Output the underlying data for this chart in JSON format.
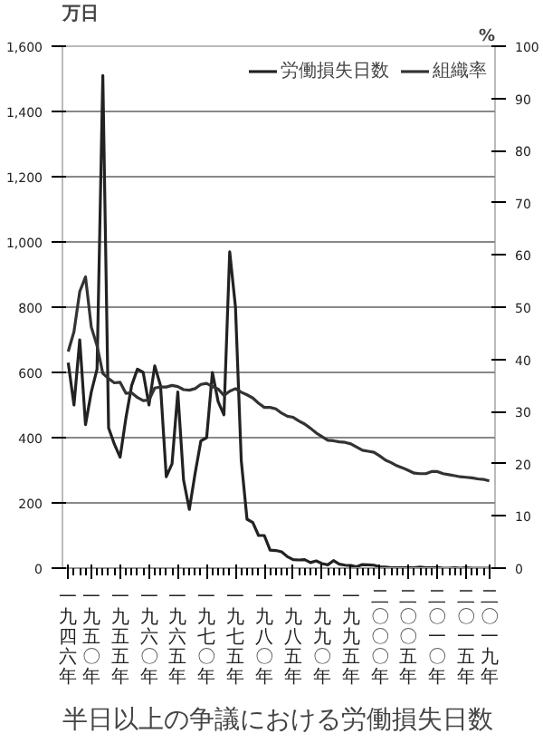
{
  "chart_data": {
    "type": "line",
    "title": "半日以上の争議における労働損失日数",
    "ylabel": "万日",
    "y2label": "%",
    "categories": [
      "一九四六年",
      null,
      null,
      null,
      "一九五〇年",
      null,
      null,
      null,
      null,
      "一九五五年",
      null,
      null,
      null,
      null,
      "一九六〇年",
      null,
      null,
      null,
      null,
      "一九六五年",
      null,
      null,
      null,
      null,
      "一九七〇年",
      null,
      null,
      null,
      null,
      "一九七五年",
      null,
      null,
      null,
      null,
      "一九八〇年",
      null,
      null,
      null,
      null,
      "一九八五年",
      null,
      null,
      null,
      null,
      "一九九〇年",
      null,
      null,
      null,
      null,
      "一九九五年",
      null,
      null,
      null,
      null,
      "二〇〇〇年",
      null,
      null,
      null,
      null,
      "二〇〇五年",
      null,
      null,
      null,
      null,
      "二〇一〇年",
      null,
      null,
      null,
      null,
      "二〇一五年",
      null,
      null,
      null,
      "二〇一九年"
    ],
    "series": [
      {
        "name": "労働損失日数",
        "color": "#222222",
        "values": [
          630,
          500,
          700,
          440,
          540,
          610,
          1510,
          430,
          380,
          340,
          460,
          560,
          610,
          600,
          500,
          620,
          560,
          280,
          320,
          540,
          270,
          180,
          290,
          390,
          400,
          600,
          510,
          470,
          970,
          800,
          330,
          150,
          140,
          100,
          100,
          55,
          54,
          50,
          35,
          26,
          25,
          26,
          17,
          22,
          14,
          10,
          23,
          12,
          9,
          8,
          4,
          11,
          10,
          9,
          4,
          3,
          1,
          1,
          1,
          1,
          1,
          3,
          1,
          1,
          2,
          0,
          0,
          1,
          0,
          1,
          0,
          0,
          0,
          0
        ]
      },
      {
        "name": "組織率",
        "color": "#333333",
        "axis": "y2",
        "values": [
          41.5,
          45.3,
          53.0,
          55.8,
          46.2,
          42.6,
          37.3,
          36.3,
          35.5,
          35.6,
          33.5,
          33.6,
          32.7,
          32.1,
          32.2,
          34.5,
          34.7,
          34.7,
          35.0,
          34.8,
          34.2,
          34.1,
          34.4,
          35.2,
          35.4,
          34.8,
          34.3,
          33.1,
          33.9,
          34.4,
          33.7,
          33.2,
          32.6,
          31.6,
          30.8,
          30.8,
          30.5,
          29.7,
          29.1,
          28.9,
          28.2,
          27.6,
          26.8,
          25.9,
          25.2,
          24.5,
          24.4,
          24.2,
          24.1,
          23.8,
          23.2,
          22.6,
          22.4,
          22.2,
          21.5,
          20.7,
          20.2,
          19.6,
          19.2,
          18.7,
          18.2,
          18.1,
          18.1,
          18.5,
          18.5,
          18.1,
          17.9,
          17.7,
          17.5,
          17.4,
          17.3,
          17.1,
          17.0,
          16.7
        ]
      }
    ],
    "ylim": [
      0,
      1600
    ],
    "yticks": [
      {
        "value": 0,
        "label": "0"
      },
      {
        "value": 200,
        "label": "200"
      },
      {
        "value": 400,
        "label": "400"
      },
      {
        "value": 600,
        "label": "600"
      },
      {
        "value": 800,
        "label": "800"
      },
      {
        "value": 1000,
        "label": "1,000"
      },
      {
        "value": 1200,
        "label": "1,200"
      },
      {
        "value": 1400,
        "label": "1,400"
      },
      {
        "value": 1600,
        "label": "1,600"
      }
    ],
    "y2lim": [
      0,
      100
    ],
    "y2ticks": [
      0,
      10,
      20,
      30,
      40,
      50,
      60,
      70,
      80,
      90,
      100
    ],
    "grid": "y",
    "legend": "top right",
    "marker": "none",
    "line_style": "solid"
  }
}
